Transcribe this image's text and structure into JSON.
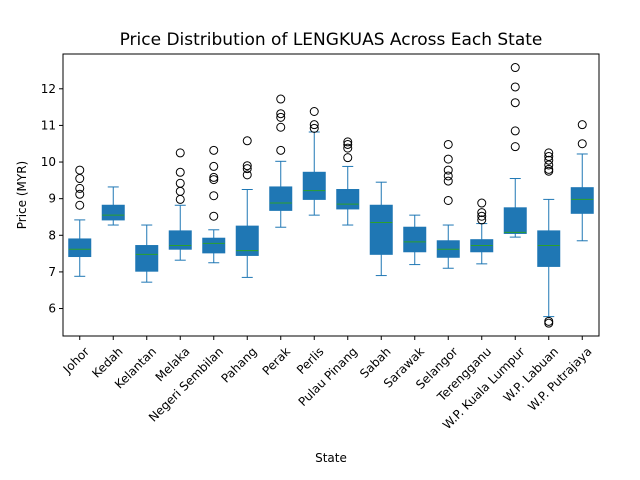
{
  "chart_data": {
    "type": "boxplot",
    "title": "Price Distribution of LENGKUAS Across Each State",
    "xlabel": "State",
    "ylabel": "Price (MYR)",
    "ylim": [
      5.25,
      12.95
    ],
    "yticks": [
      6,
      7,
      8,
      9,
      10,
      11,
      12
    ],
    "grid": false,
    "legend": "none",
    "colors": {
      "box_fill": "#1f77b4",
      "median": "#2ca02c",
      "whisker": "#1f77b4",
      "flier": "#000000"
    },
    "categories": [
      "Johor",
      "Kedah",
      "Kelantan",
      "Melaka",
      "Negeri Sembilan",
      "Pahang",
      "Perak",
      "Perlis",
      "Pulau Pinang",
      "Sabah",
      "Sarawak",
      "Selangor",
      "Terengganu",
      "W.P. Kuala Lumpur",
      "W.P. Labuan",
      "W.P. Putrajaya"
    ],
    "boxes": [
      {
        "category": "Johor",
        "whislo": 6.88,
        "q1": 7.42,
        "med": 7.62,
        "q3": 7.9,
        "whishi": 8.42,
        "fliers": [
          8.82,
          9.12,
          9.28,
          9.55,
          9.78
        ]
      },
      {
        "category": "Kedah",
        "whislo": 8.28,
        "q1": 8.42,
        "med": 8.55,
        "q3": 8.82,
        "whishi": 9.32,
        "fliers": []
      },
      {
        "category": "Kelantan",
        "whislo": 6.72,
        "q1": 7.02,
        "med": 7.48,
        "q3": 7.72,
        "whishi": 8.28,
        "fliers": []
      },
      {
        "category": "Melaka",
        "whislo": 7.32,
        "q1": 7.62,
        "med": 7.72,
        "q3": 8.12,
        "whishi": 8.82,
        "fliers": [
          8.98,
          9.2,
          9.42,
          9.72,
          10.25
        ]
      },
      {
        "category": "Negeri Sembilan",
        "whislo": 7.25,
        "q1": 7.52,
        "med": 7.78,
        "q3": 7.92,
        "whishi": 8.15,
        "fliers": [
          8.52,
          9.08,
          9.52,
          9.58,
          9.88,
          10.32
        ]
      },
      {
        "category": "Pahang",
        "whislo": 6.85,
        "q1": 7.45,
        "med": 7.58,
        "q3": 8.25,
        "whishi": 9.25,
        "fliers": [
          9.65,
          9.82,
          9.9,
          10.58
        ]
      },
      {
        "category": "Perak",
        "whislo": 8.22,
        "q1": 8.68,
        "med": 8.88,
        "q3": 9.32,
        "whishi": 10.02,
        "fliers": [
          10.32,
          10.95,
          11.22,
          11.32,
          11.72
        ]
      },
      {
        "category": "Perlis",
        "whislo": 8.55,
        "q1": 8.98,
        "med": 9.22,
        "q3": 9.72,
        "whishi": 10.82,
        "fliers": [
          10.92,
          11.02,
          11.38
        ]
      },
      {
        "category": "Pulau Pinang",
        "whislo": 8.28,
        "q1": 8.72,
        "med": 8.85,
        "q3": 9.25,
        "whishi": 9.88,
        "fliers": [
          10.12,
          10.38,
          10.48,
          10.55
        ]
      },
      {
        "category": "Sabah",
        "whislo": 6.9,
        "q1": 7.48,
        "med": 8.35,
        "q3": 8.82,
        "whishi": 9.45,
        "fliers": []
      },
      {
        "category": "Sarawak",
        "whislo": 7.2,
        "q1": 7.55,
        "med": 7.82,
        "q3": 8.22,
        "whishi": 8.55,
        "fliers": []
      },
      {
        "category": "Selangor",
        "whislo": 7.1,
        "q1": 7.4,
        "med": 7.62,
        "q3": 7.85,
        "whishi": 8.28,
        "fliers": [
          8.95,
          9.48,
          9.62,
          9.78,
          10.08,
          10.48
        ]
      },
      {
        "category": "Terengganu",
        "whislo": 7.22,
        "q1": 7.55,
        "med": 7.72,
        "q3": 7.88,
        "whishi": 8.32,
        "fliers": [
          8.42,
          8.52,
          8.62,
          8.88
        ]
      },
      {
        "category": "W.P. Kuala Lumpur",
        "whislo": 7.95,
        "q1": 8.05,
        "med": 8.08,
        "q3": 8.75,
        "whishi": 9.55,
        "fliers": [
          10.42,
          10.85,
          11.62,
          12.05,
          12.58
        ]
      },
      {
        "category": "W.P. Labuan",
        "whislo": 5.78,
        "q1": 7.15,
        "med": 7.72,
        "q3": 8.12,
        "whishi": 8.98,
        "fliers": [
          5.6,
          5.65,
          9.75,
          9.8,
          9.92,
          10.05,
          10.15,
          10.25
        ]
      },
      {
        "category": "W.P. Putrajaya",
        "whislo": 7.85,
        "q1": 8.6,
        "med": 8.98,
        "q3": 9.3,
        "whishi": 10.22,
        "fliers": [
          10.5,
          11.02
        ]
      }
    ]
  }
}
